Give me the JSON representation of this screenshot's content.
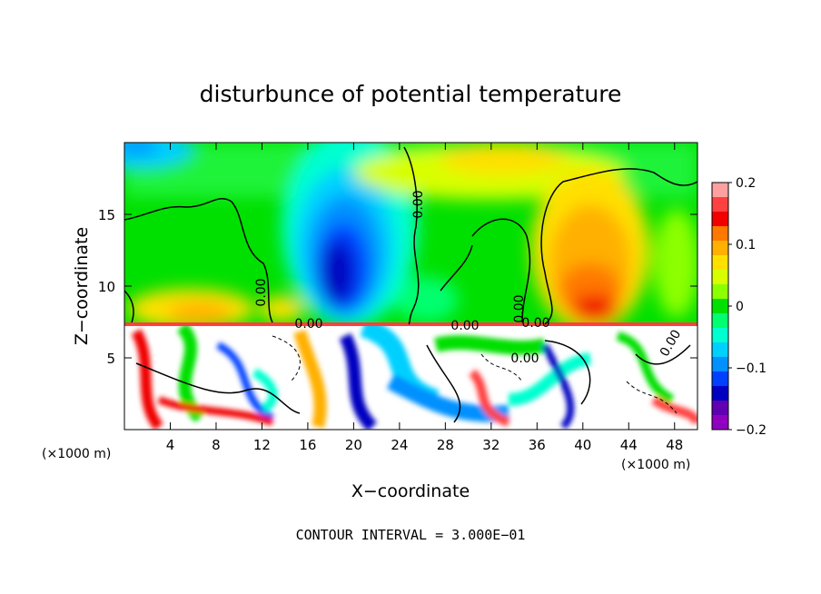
{
  "chart_data": {
    "type": "heatmap",
    "title": "disturbunce of potential temperature",
    "xlabel": "X−coordinate",
    "ylabel": "Z−coordinate",
    "x_unit": "(×1000 m)",
    "y_unit": "(×1000 m)",
    "xlim": [
      0,
      50
    ],
    "ylim": [
      0,
      20
    ],
    "x_ticks": [
      4,
      8,
      12,
      16,
      20,
      24,
      28,
      32,
      36,
      40,
      44,
      48
    ],
    "x_tick_labels": [
      "4",
      "8",
      "12",
      "16",
      "20",
      "24",
      "28",
      "32",
      "36",
      "40",
      "44",
      "48"
    ],
    "y_ticks": [
      5,
      10,
      15
    ],
    "y_tick_labels": [
      "5",
      "10",
      "15"
    ],
    "colorbar": {
      "range": [
        -0.2,
        0.2
      ],
      "ticks": [
        0.2,
        0.1,
        0,
        -0.1,
        -0.2
      ],
      "tick_labels": [
        "0.2",
        "0.1",
        "0",
        "−0.1",
        "−0.2"
      ],
      "colors": [
        "#ffa0a0",
        "#ff4040",
        "#f00000",
        "#ff7800",
        "#ffb000",
        "#ffe000",
        "#d8ff00",
        "#8cff00",
        "#00e000",
        "#00ff70",
        "#00ffd0",
        "#00d0ff",
        "#0090ff",
        "#0040ff",
        "#0000c0",
        "#6000b0",
        "#9000c0"
      ]
    },
    "contour_labels": [
      "0.00",
      "0.00",
      "0.00",
      "0.00",
      "0.00",
      "0.00",
      "0.00",
      "0.00"
    ],
    "annotation": "CONTOUR INTERVAL = 3.000E−01",
    "grid": false
  }
}
